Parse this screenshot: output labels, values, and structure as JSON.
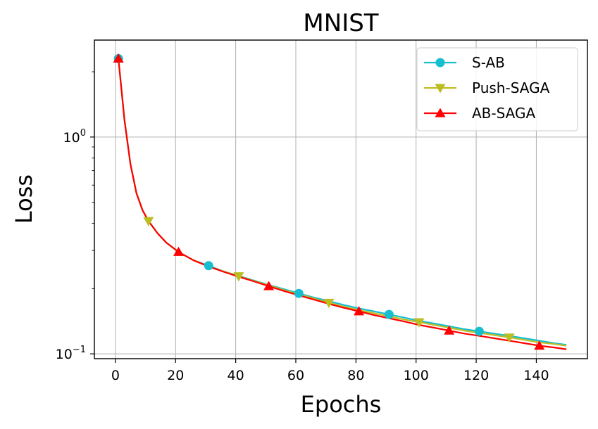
{
  "chart_data": {
    "type": "line",
    "title": "MNIST",
    "xlabel": "Epochs",
    "ylabel": "Loss",
    "x_scale": "linear",
    "y_scale": "log",
    "xlim": [
      -7,
      157
    ],
    "ylim": [
      0.095,
      2.8
    ],
    "grid": true,
    "legend_position": "top-right",
    "x_ticks": [
      0,
      20,
      40,
      60,
      80,
      100,
      120,
      140
    ],
    "x_tick_labels": [
      "0",
      "20",
      "40",
      "60",
      "80",
      "100",
      "120",
      "140"
    ],
    "y_ticks": [
      {
        "value": 1,
        "base": "10",
        "exp": "0"
      },
      {
        "value": 0.1,
        "base": "10",
        "exp": "−1"
      }
    ],
    "series": [
      {
        "name": "S-AB",
        "color": "#17becf",
        "marker": "circle",
        "x": [
          1,
          3,
          5,
          7,
          9,
          11,
          14,
          17,
          21,
          26,
          31,
          36,
          41,
          46,
          51,
          56,
          61,
          66,
          71,
          76,
          81,
          86,
          91,
          96,
          101,
          106,
          111,
          116,
          121,
          126,
          131,
          136,
          141,
          146,
          150
        ],
        "y": [
          2.3,
          1.2,
          0.75,
          0.55,
          0.46,
          0.41,
          0.36,
          0.325,
          0.295,
          0.27,
          0.255,
          0.24,
          0.229,
          0.218,
          0.208,
          0.199,
          0.19,
          0.182,
          0.175,
          0.168,
          0.162,
          0.157,
          0.152,
          0.147,
          0.142,
          0.138,
          0.134,
          0.13,
          0.127,
          0.124,
          0.121,
          0.118,
          0.115,
          0.112,
          0.11
        ],
        "marker_x": [
          1,
          31,
          61,
          91,
          121
        ],
        "marker_y": [
          2.3,
          0.255,
          0.19,
          0.152,
          0.127
        ]
      },
      {
        "name": "Push-SAGA",
        "color": "#bcbd22",
        "marker": "triangle-down",
        "x": [
          1,
          3,
          5,
          7,
          9,
          11,
          14,
          17,
          21,
          26,
          31,
          36,
          41,
          46,
          51,
          56,
          61,
          66,
          71,
          76,
          81,
          86,
          91,
          96,
          101,
          106,
          111,
          116,
          121,
          126,
          131,
          136,
          141,
          146,
          150
        ],
        "y": [
          2.3,
          1.2,
          0.75,
          0.55,
          0.46,
          0.41,
          0.36,
          0.325,
          0.295,
          0.27,
          0.253,
          0.24,
          0.228,
          0.217,
          0.207,
          0.197,
          0.188,
          0.18,
          0.172,
          0.165,
          0.159,
          0.154,
          0.149,
          0.144,
          0.14,
          0.136,
          0.132,
          0.128,
          0.125,
          0.122,
          0.119,
          0.116,
          0.113,
          0.111,
          0.109
        ],
        "marker_x": [
          11,
          41,
          71,
          101,
          131
        ],
        "marker_y": [
          0.41,
          0.228,
          0.172,
          0.14,
          0.119
        ]
      },
      {
        "name": "AB-SAGA",
        "color": "#ff0000",
        "marker": "triangle-up",
        "x": [
          1,
          3,
          5,
          7,
          9,
          11,
          14,
          17,
          21,
          26,
          31,
          36,
          41,
          46,
          51,
          56,
          61,
          66,
          71,
          76,
          81,
          86,
          91,
          96,
          101,
          106,
          111,
          116,
          121,
          126,
          131,
          136,
          141,
          146,
          150
        ],
        "y": [
          2.3,
          1.2,
          0.75,
          0.55,
          0.46,
          0.41,
          0.36,
          0.325,
          0.295,
          0.27,
          0.253,
          0.239,
          0.227,
          0.216,
          0.205,
          0.195,
          0.186,
          0.178,
          0.17,
          0.163,
          0.157,
          0.151,
          0.146,
          0.141,
          0.136,
          0.132,
          0.128,
          0.124,
          0.121,
          0.118,
          0.115,
          0.112,
          0.109,
          0.107,
          0.105
        ],
        "marker_x": [
          1,
          21,
          51,
          81,
          111,
          141
        ],
        "marker_y": [
          2.3,
          0.295,
          0.205,
          0.157,
          0.128,
          0.109
        ]
      }
    ]
  }
}
